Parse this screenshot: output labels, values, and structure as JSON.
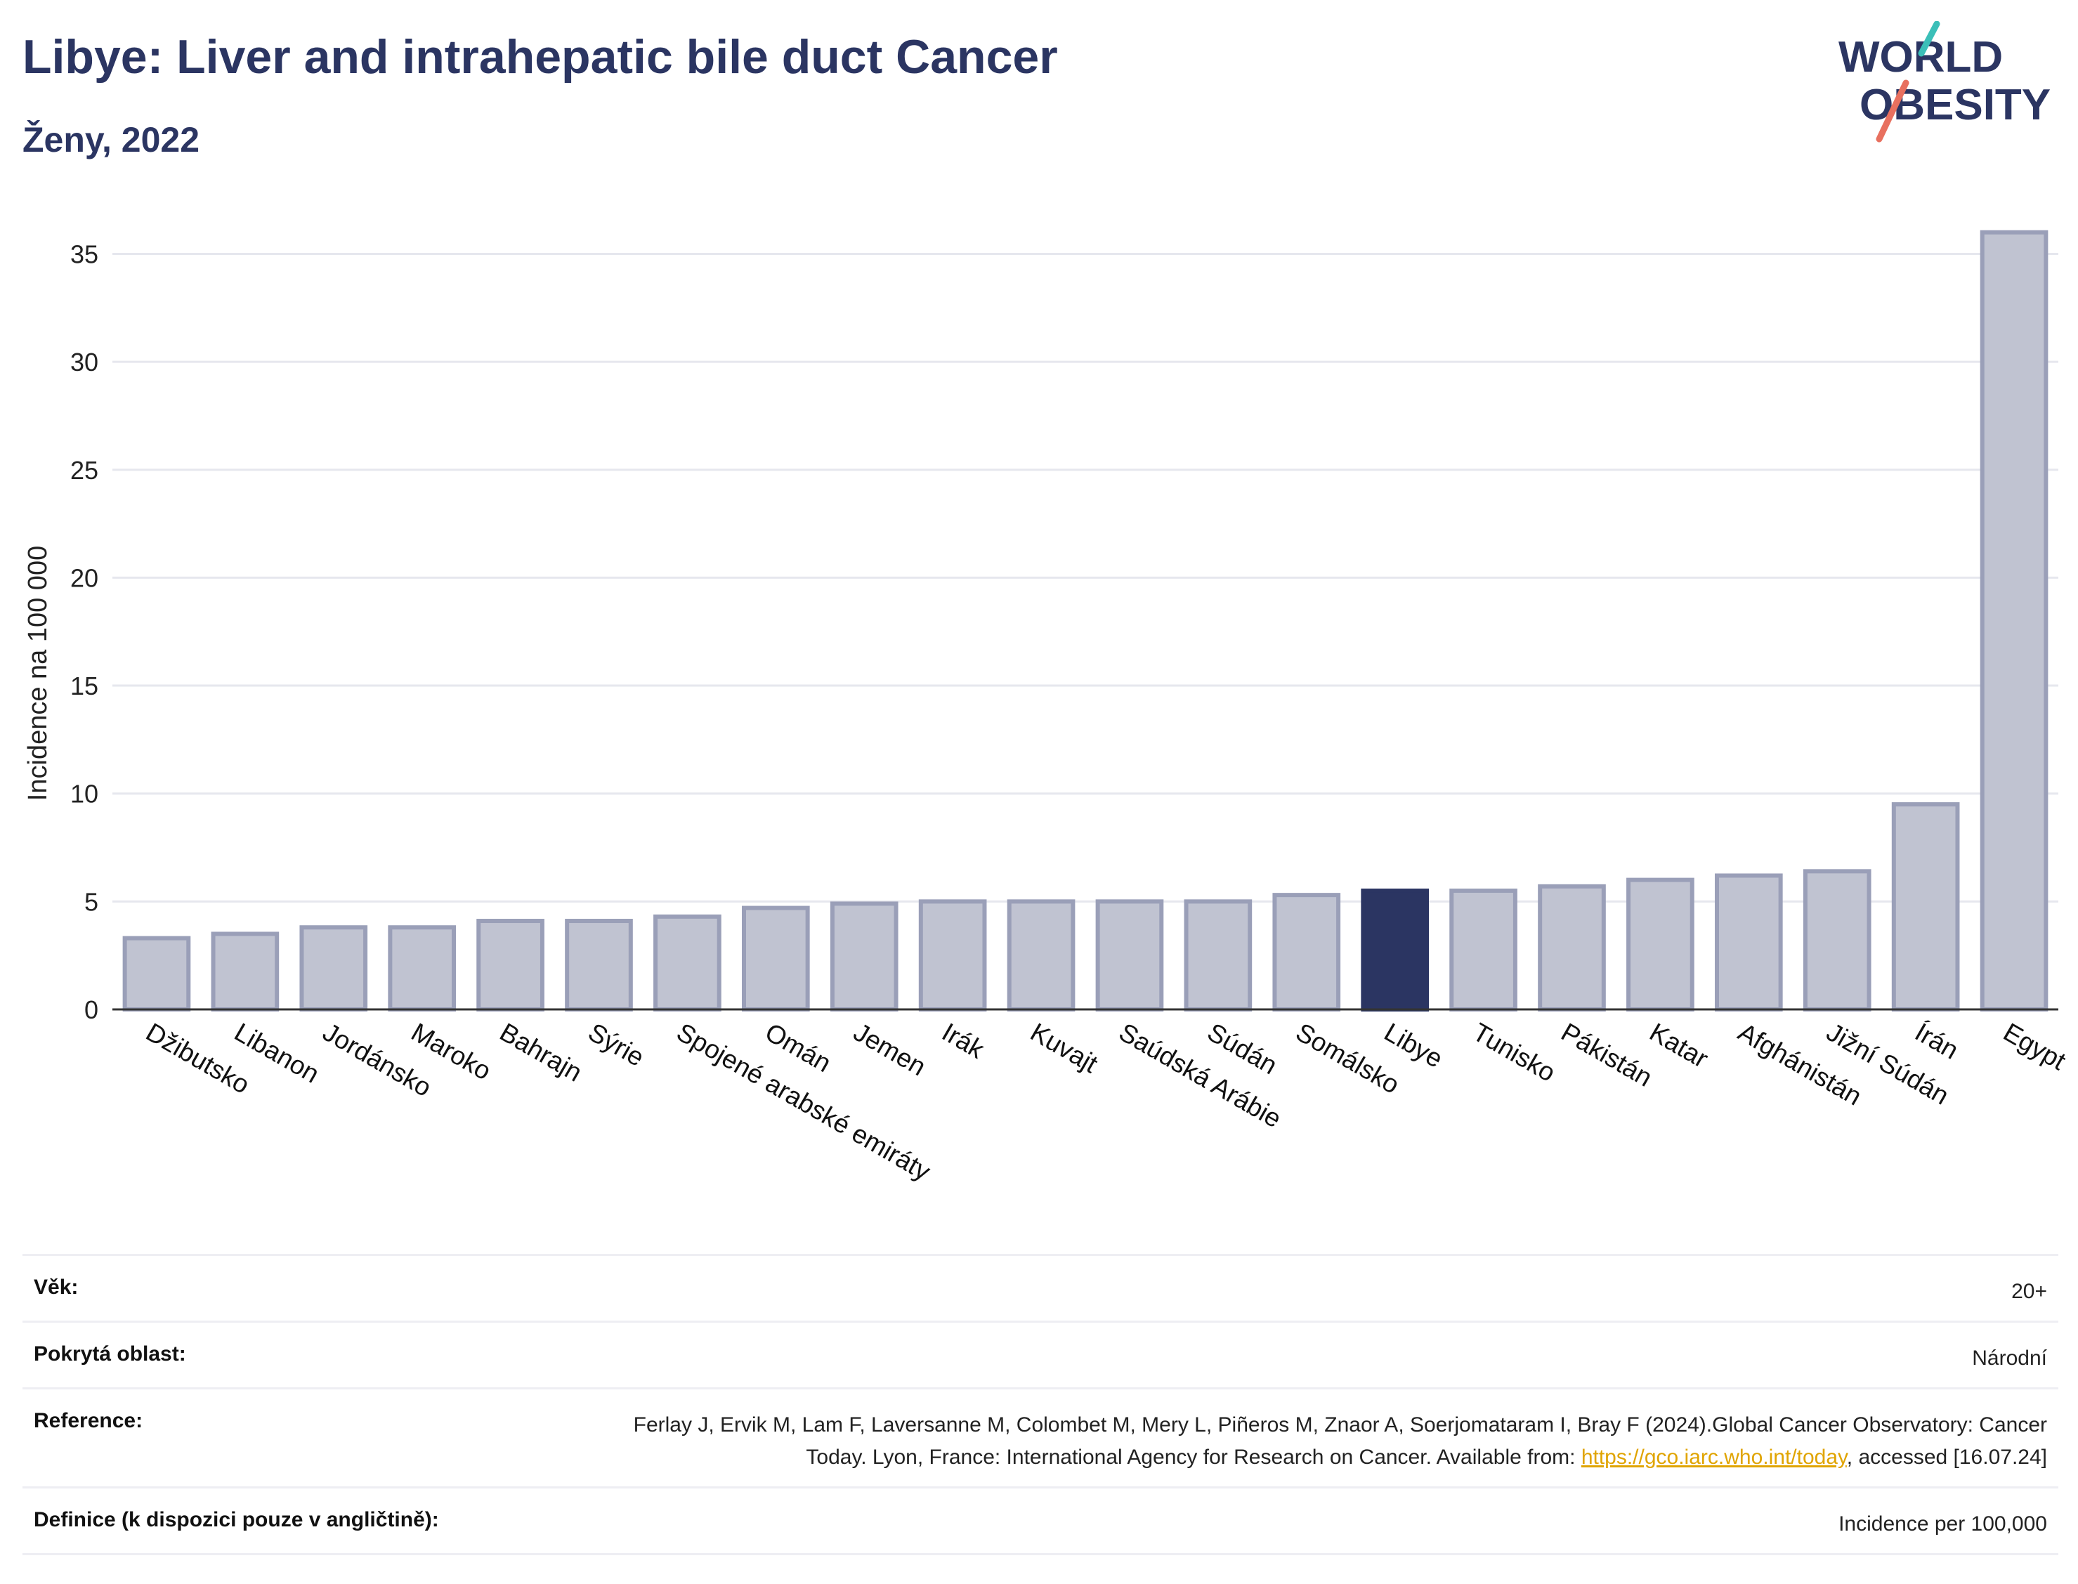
{
  "header": {
    "title": "Libye: Liver and intrahepatic bile duct Cancer",
    "subtitle": "Ženy, 2022"
  },
  "logo": {
    "line1": "WORLD",
    "line2": "OBESITY",
    "colors": {
      "text": "#2b3562",
      "teal": "#3bbfb8",
      "coral": "#e8705f"
    }
  },
  "chart_data": {
    "type": "bar",
    "ylabel": "Incidence na 100 000",
    "ylim": [
      0,
      37
    ],
    "yticks": [
      0,
      5,
      10,
      15,
      20,
      25,
      30,
      35
    ],
    "grid": true,
    "highlight": "Libye",
    "colors": {
      "bar": "#c0c3d1",
      "bar_edge": "#9a9fb8",
      "highlight": "#2b3562"
    },
    "categories": [
      "Džibutsko",
      "Libanon",
      "Jordánsko",
      "Maroko",
      "Bahrajn",
      "Sýrie",
      "Spojené arabské emiráty",
      "Omán",
      "Jemen",
      "Irák",
      "Kuvajt",
      "Saúdská Arábie",
      "Súdán",
      "Somálsko",
      "Libye",
      "Tunisko",
      "Pákistán",
      "Katar",
      "Afghánistán",
      "Jižní Súdán",
      "Írán",
      "Egypt"
    ],
    "values": [
      3.3,
      3.5,
      3.8,
      3.8,
      4.1,
      4.1,
      4.3,
      4.7,
      4.9,
      5.0,
      5.0,
      5.0,
      5.0,
      5.3,
      5.5,
      5.5,
      5.7,
      6.0,
      6.2,
      6.4,
      9.5,
      36.0
    ]
  },
  "info": {
    "age_label": "Věk:",
    "age_value": "20+",
    "coverage_label": "Pokrytá oblast:",
    "coverage_value": "Národní",
    "reference_label": "Reference:",
    "reference_text_1": "Ferlay J, Ervik M, Lam F, Laversanne M, Colombet M, Mery L, Piñeros M, Znaor A, Soerjomataram I, Bray F (2024).Global Cancer Observatory: Cancer Today. Lyon, France: International Agency for Research on Cancer. Available from: ",
    "reference_link": "https://gco.iarc.who.int/today",
    "reference_text_2": ", accessed [16.07.24]",
    "definition_label": "Definice (k dispozici pouze v angličtině):",
    "definition_value": "Incidence per 100,000"
  }
}
